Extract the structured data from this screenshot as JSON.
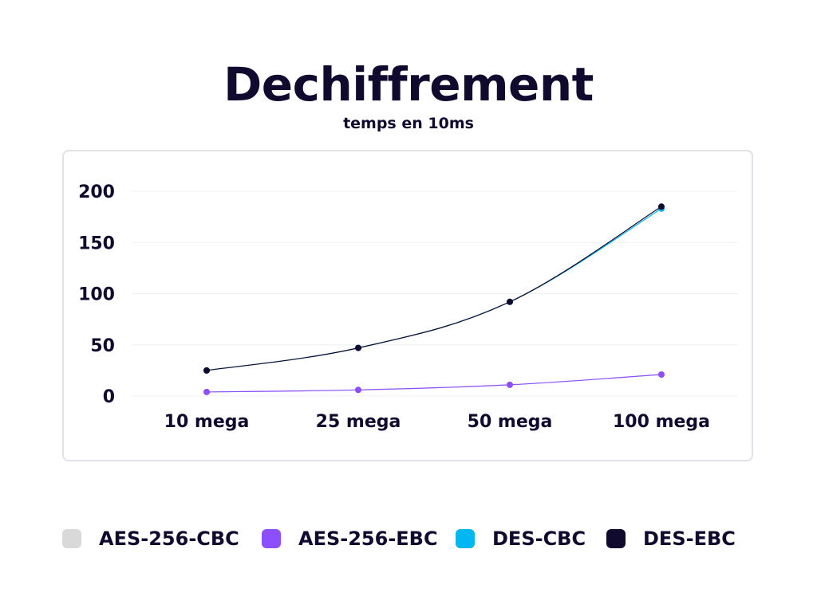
{
  "chart_data": {
    "type": "line",
    "title": "Dechiffrement",
    "subtitle": "temps en 10ms",
    "xlabel": "",
    "ylabel": "",
    "categories": [
      "10 mega",
      "25 mega",
      "50 mega",
      "100 mega"
    ],
    "y_ticks": [
      "0",
      "50",
      "100",
      "150",
      "200"
    ],
    "ylim": [
      0,
      200
    ],
    "grid": true,
    "legend_position": "bottom",
    "series": [
      {
        "name": "AES-256-CBC",
        "color": "#d9d9d9",
        "values": [
          4,
          6,
          11,
          21
        ]
      },
      {
        "name": "AES-256-EBC",
        "color": "#8c4fff",
        "values": [
          4,
          6,
          11,
          21
        ]
      },
      {
        "name": "DES-CBC",
        "color": "#00b7f1",
        "values": [
          25,
          47,
          92,
          183
        ]
      },
      {
        "name": "DES-EBC",
        "color": "#0f0a2e",
        "values": [
          25,
          47,
          92,
          185
        ]
      }
    ]
  }
}
